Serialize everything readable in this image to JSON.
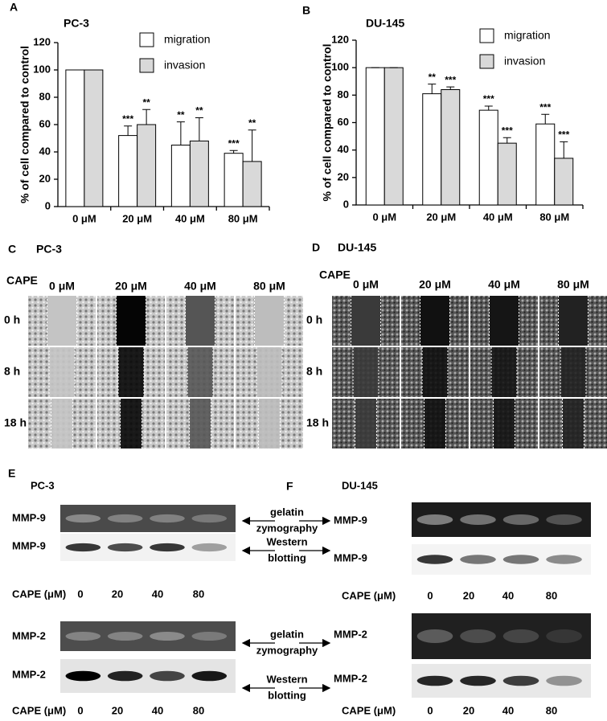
{
  "chart_data": [
    {
      "type": "bar",
      "panel": "A",
      "title": "PC-3",
      "ylabel": "% of cell compared to control",
      "categories": [
        "0 μM",
        "20 μM",
        "40 μM",
        "80 μM"
      ],
      "series": [
        {
          "name": "migration",
          "color": "#ffffff",
          "values": [
            100,
            52,
            45,
            39
          ],
          "errors": [
            0,
            7,
            17,
            2
          ],
          "significance": [
            null,
            "***",
            "**",
            "***"
          ]
        },
        {
          "name": "invasion",
          "color": "#d9d9d9",
          "values": [
            100,
            60,
            48,
            33
          ],
          "errors": [
            0,
            11,
            17,
            23
          ],
          "significance": [
            null,
            "**",
            "**",
            "**"
          ]
        }
      ],
      "ylim": [
        0,
        120
      ],
      "yticks": [
        0,
        20,
        40,
        60,
        80,
        100,
        120
      ]
    },
    {
      "type": "bar",
      "panel": "B",
      "title": "DU-145",
      "ylabel": "% of cell compared to control",
      "categories": [
        "0 μM",
        "20 μM",
        "40 μM",
        "80 μM"
      ],
      "series": [
        {
          "name": "migration",
          "color": "#ffffff",
          "values": [
            100,
            81,
            69,
            59
          ],
          "errors": [
            0,
            7,
            3,
            7
          ],
          "significance": [
            null,
            "**",
            "***",
            "***"
          ]
        },
        {
          "name": "invasion",
          "color": "#d9d9d9",
          "values": [
            100,
            84,
            45,
            34
          ],
          "errors": [
            0,
            2,
            4,
            12
          ],
          "significance": [
            null,
            "***",
            "***",
            "***"
          ]
        }
      ],
      "ylim": [
        0,
        120
      ],
      "yticks": [
        0,
        20,
        40,
        60,
        80,
        100,
        120
      ]
    }
  ],
  "panel_c": {
    "label": "C",
    "cell_line": "PC-3",
    "treatment": "CAPE",
    "columns": [
      "0 μM",
      "20 μM",
      "40 μM",
      "80 μM"
    ],
    "rows": [
      "0 h",
      "8 h",
      "18 h"
    ]
  },
  "panel_d": {
    "label": "D",
    "cell_line": "DU-145",
    "treatment": "CAPE",
    "columns": [
      "0 μM",
      "20 μM",
      "40 μM",
      "80 μM"
    ],
    "rows": [
      "0 h",
      "8 h",
      "18 h"
    ]
  },
  "panel_e": {
    "label": "E",
    "cell_line": "PC-3",
    "blots": [
      "MMP-9",
      "MMP-9",
      "MMP-2",
      "MMP-2"
    ],
    "dose_rows": [
      {
        "label": "CAPE (μM)",
        "doses": [
          "0",
          "20",
          "40",
          "80"
        ]
      },
      {
        "label": "CAPE (μM)",
        "doses": [
          "0",
          "20",
          "40",
          "80"
        ]
      }
    ]
  },
  "panel_f": {
    "label": "F",
    "cell_line": "DU-145",
    "blots": [
      "MMP-9",
      "MMP-9",
      "MMP-2",
      "MMP-2"
    ],
    "dose_rows": [
      {
        "label": "CAPE (μM)",
        "doses": [
          "0",
          "20",
          "40",
          "80"
        ]
      },
      {
        "label": "CAPE (μM)",
        "doses": [
          "0",
          "20",
          "40",
          "80"
        ]
      }
    ]
  },
  "methods": [
    [
      "gelatin",
      "zymography"
    ],
    [
      "Western",
      "blotting"
    ],
    [
      "gelatin",
      "zymography"
    ],
    [
      "Western",
      "blotting"
    ]
  ]
}
